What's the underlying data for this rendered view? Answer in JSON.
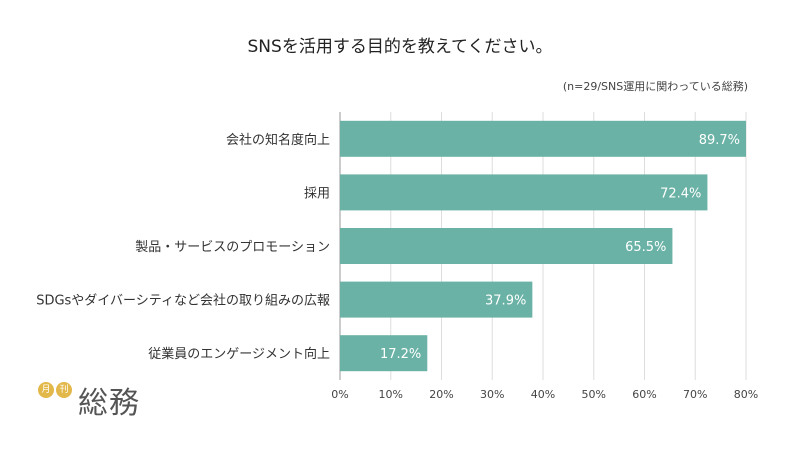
{
  "chart_data": {
    "type": "bar",
    "orientation": "horizontal",
    "title": "SNSを活用する目的を教えてください。",
    "note": "(n=29/SNS運用に関わっている総務)",
    "categories": [
      "会社の知名度向上",
      "採用",
      "製品・サービスのプロモーション",
      "SDGsやダイバーシティなど会社の取り組みの広報",
      "従業員のエンゲージメント向上"
    ],
    "values": [
      89.7,
      72.4,
      65.5,
      37.9,
      17.2
    ],
    "value_labels": [
      "89.7%",
      "72.4%",
      "65.5%",
      "37.9%",
      "17.2%"
    ],
    "xlim": [
      0,
      80
    ],
    "ticks": [
      0,
      10,
      20,
      30,
      40,
      50,
      60,
      70,
      80
    ],
    "tick_labels": [
      "0%",
      "10%",
      "20%",
      "30%",
      "40%",
      "50%",
      "60%",
      "70%",
      "80%"
    ],
    "grid": true,
    "bar_color": "#6ab2a5",
    "grid_color": "#dddddd"
  },
  "logo": {
    "badge_left": "月",
    "badge_right": "刊",
    "name": "総務",
    "badge_color": "#e3b84a"
  }
}
